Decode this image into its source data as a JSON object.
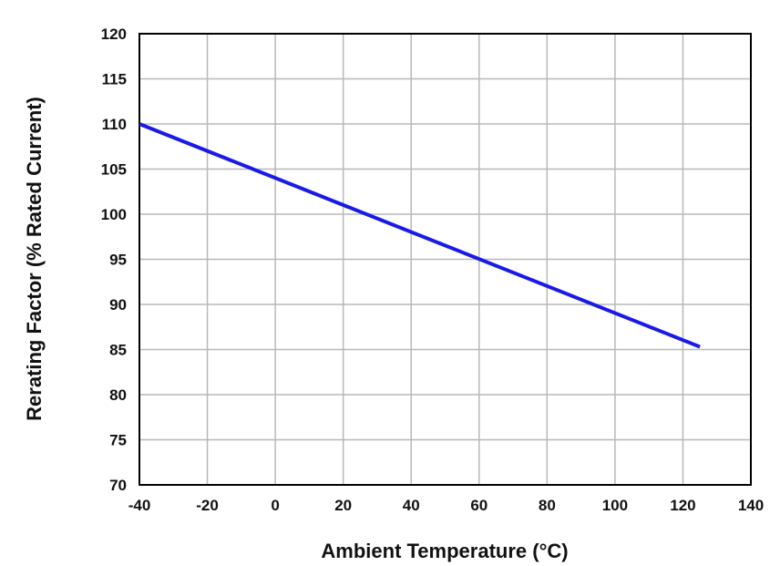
{
  "chart_data": {
    "type": "line",
    "title": "",
    "xlabel": "Ambient Temperature (°C)",
    "ylabel": "Rerating Factor (% Rated Current)",
    "xlim": [
      -40,
      140
    ],
    "ylim": [
      70,
      120
    ],
    "x_ticks": [
      -40,
      -20,
      0,
      20,
      40,
      60,
      80,
      100,
      120,
      140
    ],
    "y_ticks": [
      70,
      75,
      80,
      85,
      90,
      95,
      100,
      105,
      110,
      115,
      120
    ],
    "grid": true,
    "legend": "none",
    "series": [
      {
        "color": "#1a1ae6",
        "x": [
          -40,
          125
        ],
        "y": [
          110,
          85.3
        ]
      }
    ]
  }
}
